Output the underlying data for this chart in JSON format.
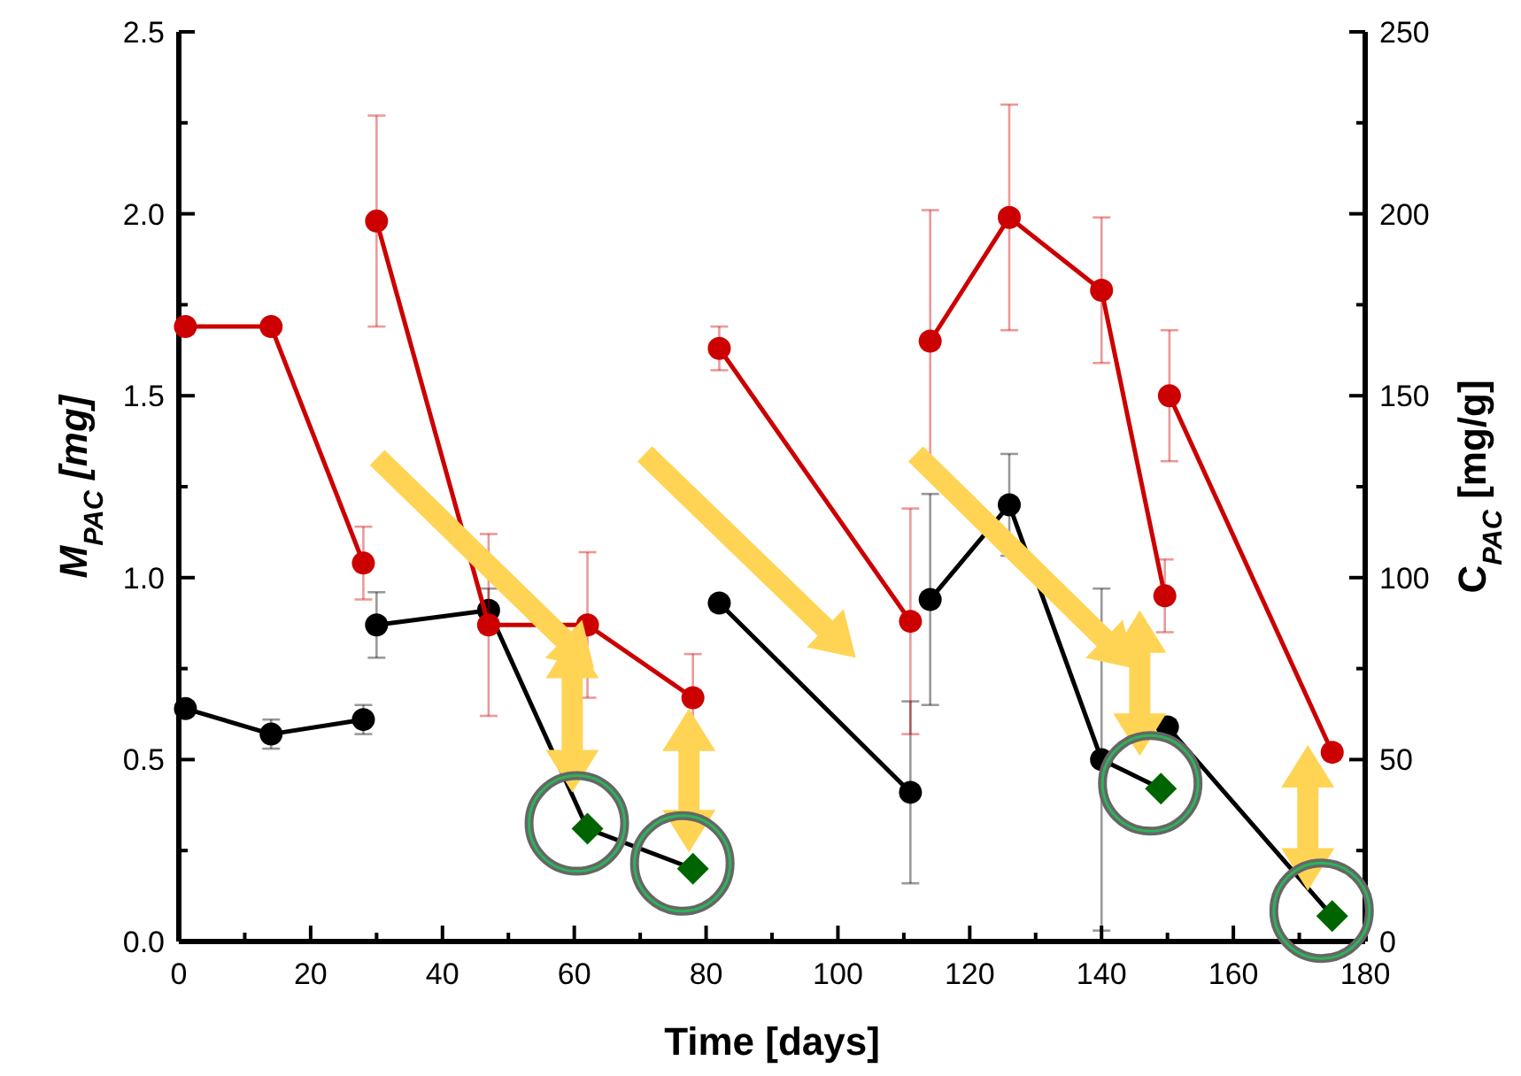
{
  "chart_data": {
    "type": "line",
    "xlabel": "Time [days]",
    "ylabel": "M$_{PAC}$ [mg]",
    "y2label": "C$_{PAC}$ [mg/g]",
    "xlim": [
      0,
      180
    ],
    "xticks": [
      0,
      {
        "value": 10,
        "label": null
      },
      20,
      {
        "value": 30,
        "label": null
      },
      40,
      {
        "value": 50,
        "label": null
      },
      60,
      {
        "value": 70,
        "label": null
      },
      80,
      {
        "value": 90,
        "label": null
      },
      100,
      {
        "value": 110,
        "label": null
      },
      120,
      {
        "value": 130,
        "label": null
      },
      140,
      {
        "value": 150,
        "label": null
      },
      160,
      {
        "value": 170,
        "label": null
      },
      180
    ],
    "ylim": [
      0,
      2.5
    ],
    "yticks": [
      {
        "value": 0,
        "label": "0.0"
      },
      {
        "value": 0.25,
        "label": null
      },
      {
        "value": 0.5,
        "label": "0.5"
      },
      {
        "value": 0.75,
        "label": null
      },
      {
        "value": 1,
        "label": "1.0"
      },
      {
        "value": 1.25,
        "label": null
      },
      {
        "value": 1.5,
        "label": "1.5"
      },
      {
        "value": 1.75,
        "label": null
      },
      {
        "value": 2,
        "label": "2.0"
      },
      {
        "value": 2.25,
        "label": null
      },
      {
        "value": 2.5,
        "label": "2.5"
      }
    ],
    "y2lim": [
      0,
      250
    ],
    "y2ticks": [
      0,
      {
        "value": 25,
        "label": null
      },
      50,
      {
        "value": 75,
        "label": null
      },
      100,
      {
        "value": 125,
        "label": null
      },
      150,
      {
        "value": 175,
        "label": null
      },
      200,
      {
        "value": 225,
        "label": null
      },
      250
    ],
    "marker": "circle",
    "line_style": "solid",
    "series": [
      {
        "color": "#000000",
        "x": [
          1,
          14,
          28,
          29,
          30,
          47,
          62,
          78,
          80,
          82,
          111,
          112,
          114,
          126,
          140,
          149,
          149.8,
          150,
          175
        ],
        "values": [
          0.64,
          0.57,
          0.61,
          null,
          0.87,
          0.91,
          0.31,
          0.2,
          null,
          0.93,
          0.41,
          null,
          0.94,
          1.2,
          0.5,
          0.42,
          null,
          0.59,
          0.07
        ],
        "errors": [
          0.02,
          0.04,
          0.04,
          null,
          0.09,
          0.06,
          null,
          null,
          null,
          0.02,
          0.25,
          null,
          0.29,
          0.14,
          0.47,
          null,
          null,
          0.02,
          null
        ]
      },
      {
        "color": "#cc0000",
        "axis": "y2",
        "x": [
          1,
          14,
          28,
          29,
          30,
          47,
          62,
          78,
          80,
          82,
          111,
          112,
          114,
          126,
          140,
          149.6,
          150,
          150.3,
          175
        ],
        "values": [
          169,
          169,
          104,
          null,
          198,
          87,
          87,
          67,
          null,
          163,
          88,
          null,
          165,
          199,
          179,
          95,
          null,
          150,
          52
        ],
        "errors": [
          2,
          2,
          10,
          null,
          29,
          25,
          20,
          12,
          null,
          6,
          31,
          null,
          36,
          31,
          20,
          10,
          null,
          18,
          2
        ]
      },
      {
        "type": "scatter",
        "color": "#006400",
        "marker": "diamond",
        "x": [
          62,
          78,
          149,
          175
        ],
        "values": [
          0.31,
          0.2,
          0.42,
          0.07
        ]
      }
    ]
  }
}
